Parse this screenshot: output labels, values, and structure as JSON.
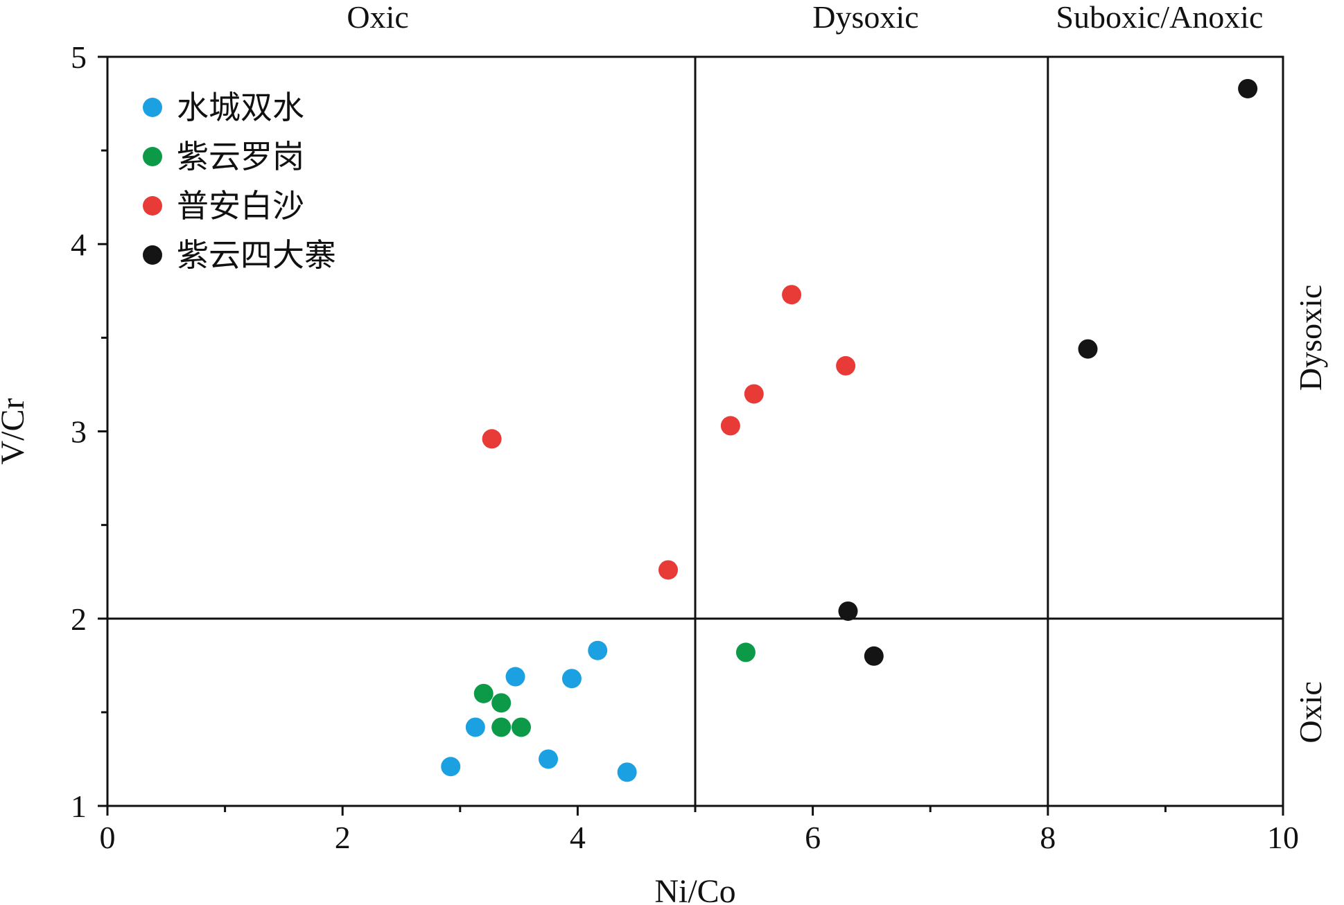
{
  "chart_data": {
    "type": "scatter",
    "xlabel": "Ni/Co",
    "ylabel": "V/Cr",
    "xlim": [
      0,
      10
    ],
    "ylim": [
      1,
      5
    ],
    "x_ticks": [
      0,
      2,
      4,
      6,
      8,
      10
    ],
    "x_minor_step": 1,
    "y_ticks": [
      1,
      2,
      3,
      4,
      5
    ],
    "y_minor_step": 0.5,
    "grid": false,
    "legend_position": "top-left",
    "boundaries": {
      "x": [
        5,
        8
      ],
      "y": [
        2
      ]
    },
    "zones_top": [
      {
        "label": "Oxic",
        "x_center": 2.3
      },
      {
        "label": "Dysoxic",
        "x_center": 6.45
      },
      {
        "label": "Suboxic/Anoxic",
        "x_center": 8.95
      }
    ],
    "zones_right": [
      {
        "label": "Dysoxic",
        "y_center": 3.5
      },
      {
        "label": "Oxic",
        "y_center": 1.5
      }
    ],
    "series": [
      {
        "name": "水城双水",
        "color": "#1ba1e2",
        "points": [
          [
            2.92,
            1.21
          ],
          [
            3.13,
            1.42
          ],
          [
            3.47,
            1.69
          ],
          [
            3.75,
            1.25
          ],
          [
            3.95,
            1.68
          ],
          [
            4.17,
            1.83
          ],
          [
            4.42,
            1.18
          ]
        ]
      },
      {
        "name": "紫云罗岗",
        "color": "#0c9a48",
        "points": [
          [
            3.2,
            1.6
          ],
          [
            3.35,
            1.55
          ],
          [
            3.35,
            1.42
          ],
          [
            3.52,
            1.42
          ],
          [
            5.43,
            1.82
          ]
        ]
      },
      {
        "name": "普安白沙",
        "color": "#e83a36",
        "points": [
          [
            3.27,
            2.96
          ],
          [
            4.77,
            2.26
          ],
          [
            5.3,
            3.03
          ],
          [
            5.5,
            3.2
          ],
          [
            5.82,
            3.73
          ],
          [
            6.28,
            3.35
          ]
        ]
      },
      {
        "name": "紫云四大寨",
        "color": "#141414",
        "points": [
          [
            6.3,
            2.04
          ],
          [
            6.52,
            1.8
          ],
          [
            8.34,
            3.44
          ],
          [
            9.7,
            4.83
          ]
        ]
      }
    ]
  }
}
